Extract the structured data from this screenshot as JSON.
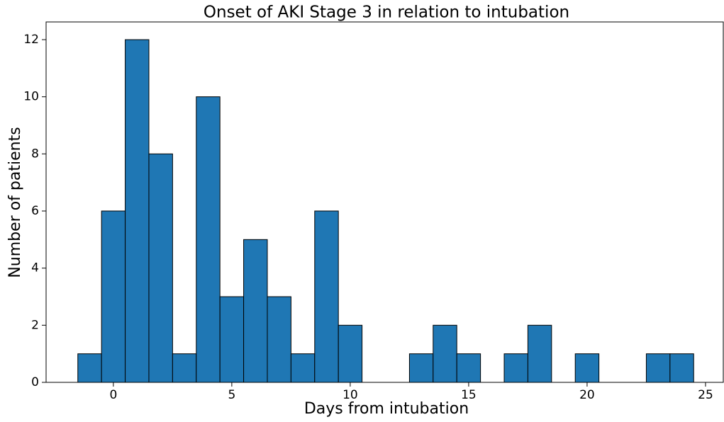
{
  "chart_data": {
    "type": "histogram",
    "title": "Onset of AKI Stage 3 in relation to intubation",
    "x_label": "Days from intubation",
    "y_label": "Number of patients",
    "bins": [
      -1.5,
      -0.5,
      0.5,
      1.5,
      2.5,
      3.5,
      4.5,
      5.5,
      6.5,
      7.5,
      8.5,
      9.5,
      10.5,
      11.5,
      12.5,
      13.5,
      14.5,
      15.5,
      16.5,
      17.5,
      18.5,
      19.5,
      20.5,
      21.5,
      22.5,
      23.5,
      24.5
    ],
    "values": [
      1,
      6,
      12,
      8,
      1,
      10,
      3,
      5,
      3,
      1,
      6,
      2,
      0,
      0,
      1,
      2,
      1,
      0,
      1,
      2,
      0,
      1,
      0,
      0,
      1,
      1
    ],
    "color": "#1f77b4",
    "xlim": [
      -2.84,
      25.75
    ],
    "xticks": [
      0,
      5,
      10,
      15,
      20,
      25
    ],
    "ylim": [
      0,
      12.62
    ],
    "yticks": [
      0,
      2,
      4,
      6,
      8,
      10,
      12
    ]
  }
}
